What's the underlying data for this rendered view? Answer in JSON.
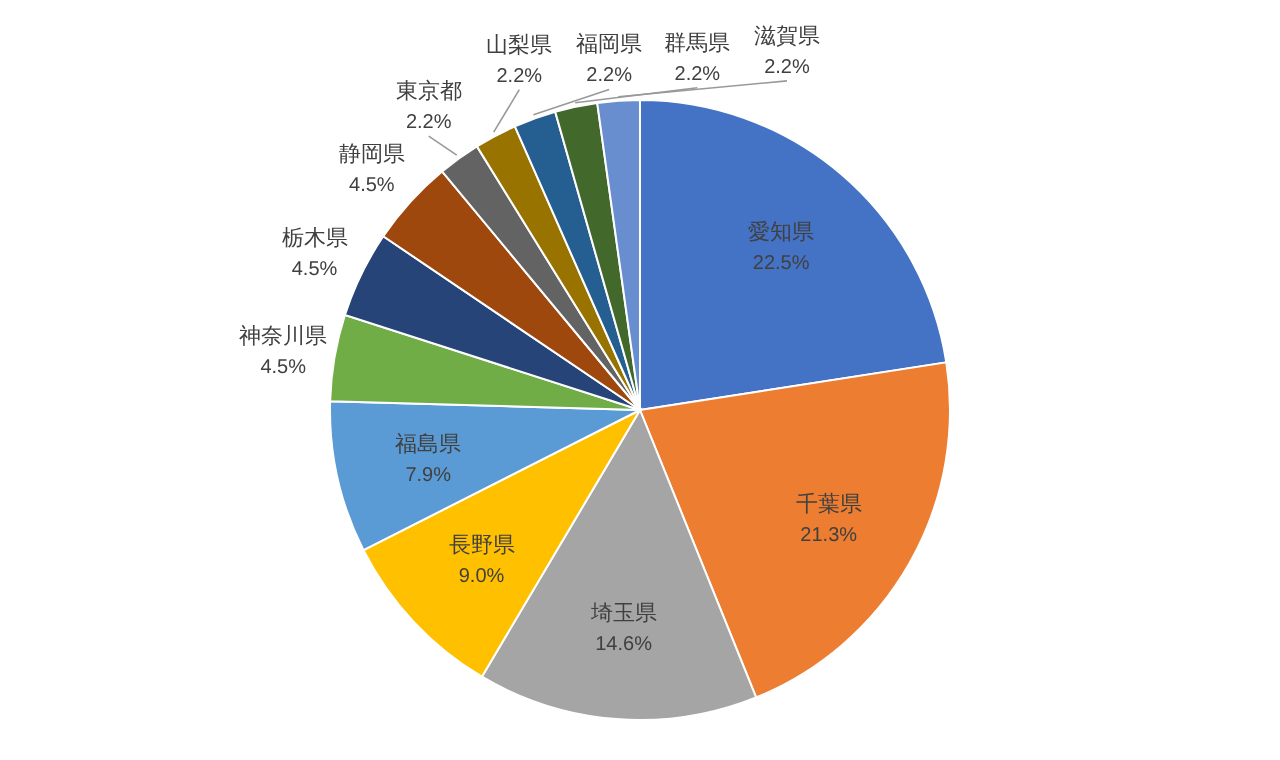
{
  "chart_data": {
    "type": "pie",
    "categories": [
      "愛知県",
      "千葉県",
      "埼玉県",
      "長野県",
      "福島県",
      "神奈川県",
      "栃木県",
      "静岡県",
      "東京都",
      "山梨県",
      "福岡県",
      "群馬県",
      "滋賀県"
    ],
    "values": [
      22.5,
      21.3,
      14.6,
      9.0,
      7.9,
      4.5,
      4.5,
      4.5,
      2.2,
      2.2,
      2.2,
      2.2,
      2.2
    ],
    "value_labels": [
      "22.5%",
      "21.3%",
      "14.6%",
      "9.0%",
      "7.9%",
      "4.5%",
      "4.5%",
      "4.5%",
      "2.2%",
      "2.2%",
      "2.2%",
      "2.2%",
      "2.2%"
    ],
    "colors": [
      "#4472c4",
      "#ed7d31",
      "#a5a5a5",
      "#ffc000",
      "#5b9bd5",
      "#70ad47",
      "#264478",
      "#9e480e",
      "#636363",
      "#997300",
      "#255e91",
      "#43682b",
      "#698ed0"
    ]
  }
}
